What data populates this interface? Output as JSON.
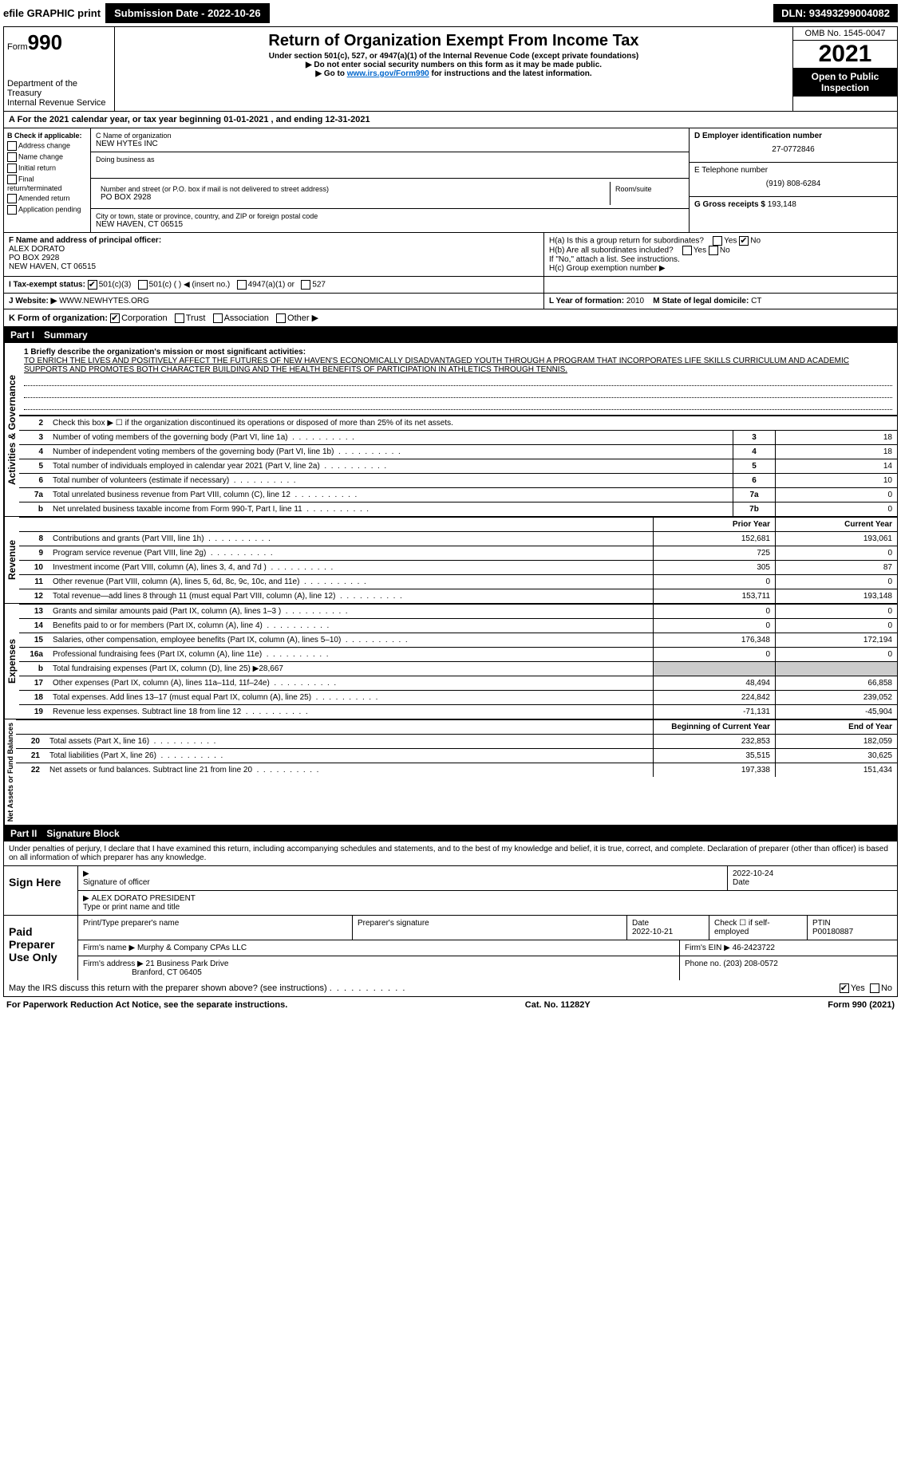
{
  "topbar": {
    "efile": "efile GRAPHIC print",
    "submission": "Submission Date - 2022-10-26",
    "dln": "DLN: 93493299004082"
  },
  "header": {
    "form_label": "Form",
    "form_num": "990",
    "dept": "Department of the Treasury",
    "irs": "Internal Revenue Service",
    "title": "Return of Organization Exempt From Income Tax",
    "sub1": "Under section 501(c), 527, or 4947(a)(1) of the Internal Revenue Code (except private foundations)",
    "sub2": "▶ Do not enter social security numbers on this form as it may be made public.",
    "sub3": "▶ Go to www.irs.gov/Form990 for instructions and the latest information.",
    "omb": "OMB No. 1545-0047",
    "year": "2021",
    "open": "Open to Public Inspection"
  },
  "line_a": "A For the 2021 calendar year, or tax year beginning 01-01-2021    , and ending 12-31-2021",
  "box_b": {
    "title": "B Check if applicable:",
    "items": [
      "Address change",
      "Name change",
      "Initial return",
      "Final return/terminated",
      "Amended return",
      "Application pending"
    ]
  },
  "box_c": {
    "name_lbl": "C Name of organization",
    "name": "NEW HYTEs INC",
    "dba_lbl": "Doing business as",
    "dba": "",
    "street_lbl": "Number and street (or P.O. box if mail is not delivered to street address)",
    "room_lbl": "Room/suite",
    "street": "PO BOX 2928",
    "city_lbl": "City or town, state or province, country, and ZIP or foreign postal code",
    "city": "NEW HAVEN, CT  06515"
  },
  "box_de": {
    "d_lbl": "D Employer identification number",
    "ein": "27-0772846",
    "e_lbl": "E Telephone number",
    "phone": "(919) 808-6284",
    "g_lbl": "G Gross receipts $",
    "gross": "193,148"
  },
  "box_f": {
    "lbl": "F Name and address of principal officer:",
    "name": "ALEX DORATO",
    "addr1": "PO BOX 2928",
    "addr2": "NEW HAVEN, CT  06515"
  },
  "box_h": {
    "a": "H(a)  Is this a group return for subordinates?",
    "b": "H(b)  Are all subordinates included?",
    "b2": "If \"No,\" attach a list. See instructions.",
    "c": "H(c)  Group exemption number ▶",
    "yes": "Yes",
    "no": "No"
  },
  "tax_status": {
    "lbl": "I  Tax-exempt status:",
    "c3": "501(c)(3)",
    "c": "501(c) (  ) ◀ (insert no.)",
    "a1": "4947(a)(1) or",
    "527": "527"
  },
  "website": {
    "lbl": "J  Website: ▶",
    "val": "WWW.NEWHYTES.ORG"
  },
  "line_k": {
    "lbl": "K Form of organization:",
    "opts": [
      "Corporation",
      "Trust",
      "Association",
      "Other ▶"
    ]
  },
  "line_lm": {
    "l_lbl": "L Year of formation:",
    "l_val": "2010",
    "m_lbl": "M State of legal domicile:",
    "m_val": "CT"
  },
  "part1": {
    "hdr": "Part I",
    "title": "Summary",
    "mission_lbl": "1  Briefly describe the organization's mission or most significant activities:",
    "mission": "TO ENRICH THE LIVES AND POSITIVELY AFFECT THE FUTURES OF NEW HAVEN'S ECONOMICALLY DISADVANTAGED YOUTH THROUGH A PROGRAM THAT INCORPORATES LIFE SKILLS CURRICULUM AND ACADEMIC SUPPORTS AND PROMOTES BOTH CHARACTER BUILDING AND THE HEALTH BENEFITS OF PARTICIPATION IN ATHLETICS THROUGH TENNIS.",
    "line2": "Check this box ▶ ☐  if the organization discontinued its operations or disposed of more than 25% of its net assets."
  },
  "gov_rows": [
    {
      "n": "3",
      "d": "Number of voting members of the governing body (Part VI, line 1a)",
      "box": "3",
      "v": "18"
    },
    {
      "n": "4",
      "d": "Number of independent voting members of the governing body (Part VI, line 1b)",
      "box": "4",
      "v": "18"
    },
    {
      "n": "5",
      "d": "Total number of individuals employed in calendar year 2021 (Part V, line 2a)",
      "box": "5",
      "v": "14"
    },
    {
      "n": "6",
      "d": "Total number of volunteers (estimate if necessary)",
      "box": "6",
      "v": "10"
    },
    {
      "n": "7a",
      "d": "Total unrelated business revenue from Part VIII, column (C), line 12",
      "box": "7a",
      "v": "0"
    },
    {
      "n": "b",
      "d": "Net unrelated business taxable income from Form 990-T, Part I, line 11",
      "box": "7b",
      "v": "0"
    }
  ],
  "col_hdrs": {
    "prior": "Prior Year",
    "current": "Current Year"
  },
  "rev_rows": [
    {
      "n": "8",
      "d": "Contributions and grants (Part VIII, line 1h)",
      "p": "152,681",
      "c": "193,061"
    },
    {
      "n": "9",
      "d": "Program service revenue (Part VIII, line 2g)",
      "p": "725",
      "c": "0"
    },
    {
      "n": "10",
      "d": "Investment income (Part VIII, column (A), lines 3, 4, and 7d )",
      "p": "305",
      "c": "87"
    },
    {
      "n": "11",
      "d": "Other revenue (Part VIII, column (A), lines 5, 6d, 8c, 9c, 10c, and 11e)",
      "p": "0",
      "c": "0"
    },
    {
      "n": "12",
      "d": "Total revenue—add lines 8 through 11 (must equal Part VIII, column (A), line 12)",
      "p": "153,711",
      "c": "193,148"
    }
  ],
  "exp_rows": [
    {
      "n": "13",
      "d": "Grants and similar amounts paid (Part IX, column (A), lines 1–3 )",
      "p": "0",
      "c": "0"
    },
    {
      "n": "14",
      "d": "Benefits paid to or for members (Part IX, column (A), line 4)",
      "p": "0",
      "c": "0"
    },
    {
      "n": "15",
      "d": "Salaries, other compensation, employee benefits (Part IX, column (A), lines 5–10)",
      "p": "176,348",
      "c": "172,194"
    },
    {
      "n": "16a",
      "d": "Professional fundraising fees (Part IX, column (A), line 11e)",
      "p": "0",
      "c": "0"
    },
    {
      "n": "b",
      "d": "Total fundraising expenses (Part IX, column (D), line 25) ▶28,667",
      "p": "grey",
      "c": "grey"
    },
    {
      "n": "17",
      "d": "Other expenses (Part IX, column (A), lines 11a–11d, 11f–24e)",
      "p": "48,494",
      "c": "66,858"
    },
    {
      "n": "18",
      "d": "Total expenses. Add lines 13–17 (must equal Part IX, column (A), line 25)",
      "p": "224,842",
      "c": "239,052"
    },
    {
      "n": "19",
      "d": "Revenue less expenses. Subtract line 18 from line 12",
      "p": "-71,131",
      "c": "-45,904"
    }
  ],
  "na_hdrs": {
    "begin": "Beginning of Current Year",
    "end": "End of Year"
  },
  "na_rows": [
    {
      "n": "20",
      "d": "Total assets (Part X, line 16)",
      "p": "232,853",
      "c": "182,059"
    },
    {
      "n": "21",
      "d": "Total liabilities (Part X, line 26)",
      "p": "35,515",
      "c": "30,625"
    },
    {
      "n": "22",
      "d": "Net assets or fund balances. Subtract line 21 from line 20",
      "p": "197,338",
      "c": "151,434"
    }
  ],
  "vert_labels": {
    "gov": "Activities & Governance",
    "rev": "Revenue",
    "exp": "Expenses",
    "na": "Net Assets or Fund Balances"
  },
  "part2": {
    "hdr": "Part II",
    "title": "Signature Block",
    "penalty": "Under penalties of perjury, I declare that I have examined this return, including accompanying schedules and statements, and to the best of my knowledge and belief, it is true, correct, and complete. Declaration of preparer (other than officer) is based on all information of which preparer has any knowledge."
  },
  "sign": {
    "lbl": "Sign Here",
    "sig_lbl": "Signature of officer",
    "date_lbl": "Date",
    "date": "2022-10-24",
    "name": "ALEX DORATO  PRESIDENT",
    "name_lbl": "Type or print name and title"
  },
  "preparer": {
    "lbl": "Paid Preparer Use Only",
    "name_lbl": "Print/Type preparer's name",
    "sig_lbl": "Preparer's signature",
    "date_lbl": "Date",
    "date": "2022-10-21",
    "chk_lbl": "Check ☐ if self-employed",
    "ptin_lbl": "PTIN",
    "ptin": "P00180887",
    "firm_lbl": "Firm's name     ▶",
    "firm": "Murphy & Company CPAs LLC",
    "ein_lbl": "Firm's EIN ▶",
    "ein": "46-2423722",
    "addr_lbl": "Firm's address ▶",
    "addr1": "21 Business Park Drive",
    "addr2": "Branford, CT  06405",
    "phone_lbl": "Phone no.",
    "phone": "(203) 208-0572"
  },
  "discuss": "May the IRS discuss this return with the preparer shown above? (see instructions)",
  "footer": {
    "left": "For Paperwork Reduction Act Notice, see the separate instructions.",
    "mid": "Cat. No. 11282Y",
    "right": "Form 990 (2021)"
  }
}
